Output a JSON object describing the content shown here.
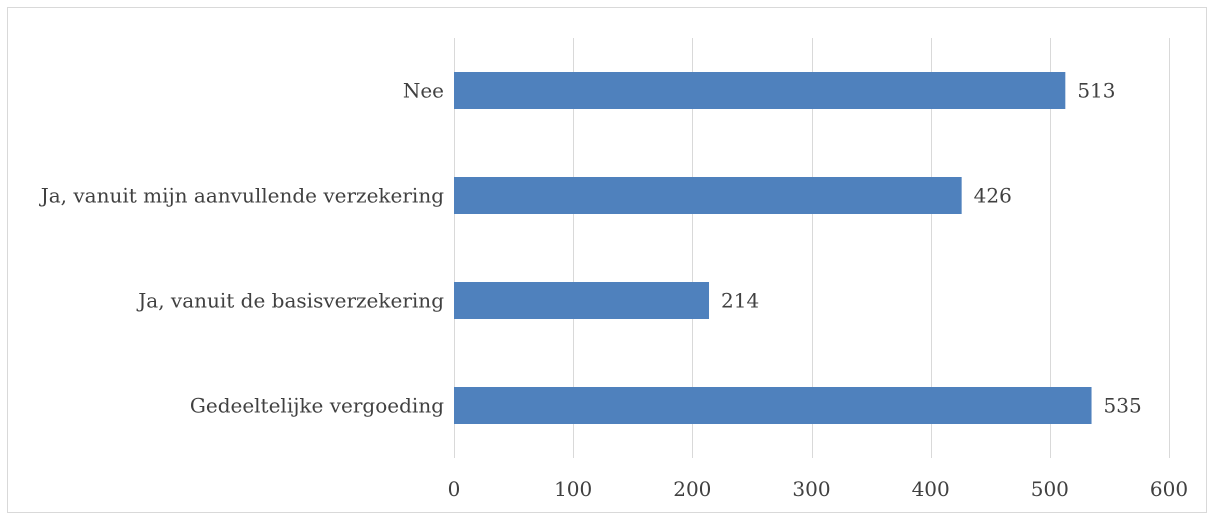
{
  "chart_data": {
    "type": "bar",
    "orientation": "horizontal",
    "title": "",
    "xlabel": "",
    "ylabel": "",
    "categories": [
      "Nee",
      "Ja, vanuit mijn aanvullende verzekering",
      "Ja, vanuit de basisverzekering",
      "Gedeeltelijke vergoeding"
    ],
    "values": [
      513,
      426,
      214,
      535
    ],
    "xlim": [
      0,
      600
    ],
    "x_ticks": [
      0,
      100,
      200,
      300,
      400,
      500,
      600
    ],
    "grid": "vertical",
    "legend": "none",
    "data_labels": true,
    "bar_color": "#4f81bd",
    "gridline_color": "#d9d9d9",
    "text_color": "#404040",
    "frame_color": "#d9d9d9"
  }
}
